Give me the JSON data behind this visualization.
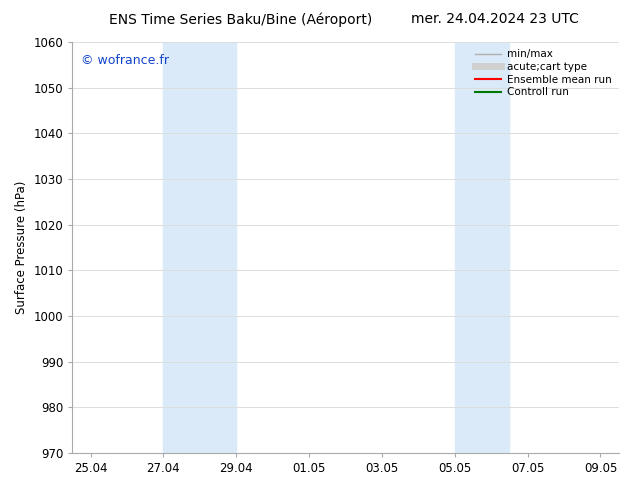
{
  "title_left": "ENS Time Series Baku/Bine (Aéroport)",
  "title_right": "mer. 24.04.2024 23 UTC",
  "ylabel": "Surface Pressure (hPa)",
  "ylim": [
    970,
    1060
  ],
  "yticks": [
    970,
    980,
    990,
    1000,
    1010,
    1020,
    1030,
    1040,
    1050,
    1060
  ],
  "xtick_labels": [
    "25.04",
    "27.04",
    "29.04",
    "01.05",
    "03.05",
    "05.05",
    "07.05",
    "09.05"
  ],
  "xtick_days": [
    0,
    2,
    4,
    6,
    8,
    10,
    12,
    14
  ],
  "xlim_days": [
    -0.5,
    14.5
  ],
  "shaded_bands": [
    {
      "x_start": 2,
      "x_end": 4
    },
    {
      "x_start": 10,
      "x_end": 11.5
    }
  ],
  "shaded_color": "#daeaf8",
  "watermark": "© wofrance.fr",
  "watermark_color": "#1144cc",
  "legend_items": [
    {
      "label": "min/max",
      "color": "#b0b0b0",
      "lw": 1.0
    },
    {
      "label": "acute;cart type",
      "color": "#d0d0d0",
      "lw": 5
    },
    {
      "label": "Ensemble mean run",
      "color": "#ff0000",
      "lw": 1.5
    },
    {
      "label": "Controll run",
      "color": "#007700",
      "lw": 1.5
    }
  ],
  "bg_color": "#ffffff",
  "grid_color": "#dddddd",
  "title_fontsize": 10,
  "axis_fontsize": 8.5,
  "watermark_fontsize": 9
}
